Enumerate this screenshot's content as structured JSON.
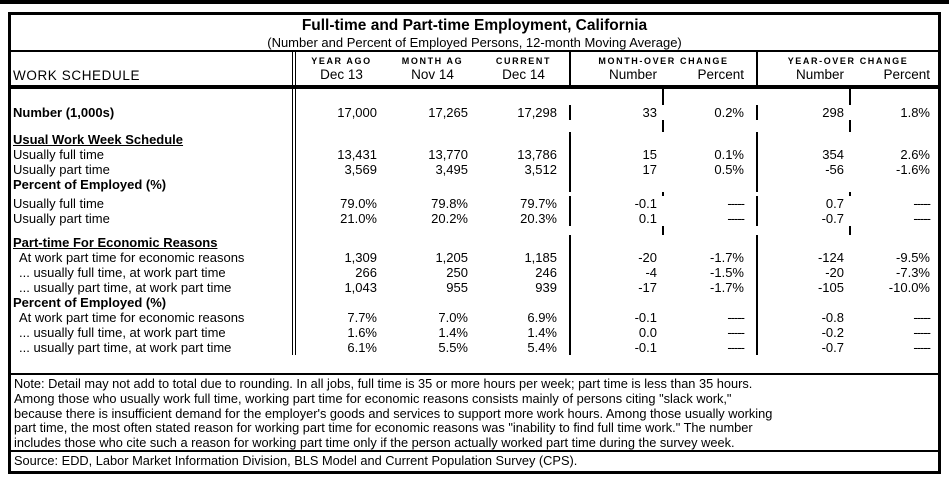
{
  "title": "Full-time and Part-time Employment, California",
  "subtitle": "(Number and Percent of Employed Persons, 12-month Moving Average)",
  "colors": {
    "border": "#000000",
    "background": "#ffffff",
    "text": "#000000"
  },
  "header": {
    "work_schedule": "WORK SCHEDULE",
    "period_cols": [
      {
        "top": "YEAR AGO",
        "sub": "Dec 13"
      },
      {
        "top": "MONTH AG",
        "sub": "Nov 14"
      },
      {
        "top": "CURRENT",
        "sub": "Dec 14"
      }
    ],
    "month_over": {
      "label": "MONTH-OVER CHANGE",
      "sub1": "Number",
      "sub2": "Percent"
    },
    "year_over": {
      "label": "YEAR-OVER CHANGE",
      "sub1": "Number",
      "sub2": "Percent"
    }
  },
  "table": {
    "rows": [
      {
        "type": "spacer",
        "h": 16
      },
      {
        "type": "data",
        "style": "bold",
        "label": "Number (1,000s)",
        "values": [
          "17,000",
          "17,265",
          "17,298",
          "33",
          "0.2%",
          "298",
          "1.8%"
        ]
      },
      {
        "type": "spacer",
        "h": 12
      },
      {
        "type": "data",
        "style": "underline",
        "label": "Usual Work Week Schedule",
        "values": [
          "",
          "",
          "",
          "",
          "",
          "",
          ""
        ]
      },
      {
        "type": "data",
        "style": "",
        "label": "Usually full time",
        "values": [
          "13,431",
          "13,770",
          "13,786",
          "15",
          "0.1%",
          "354",
          "2.6%"
        ]
      },
      {
        "type": "data",
        "style": "",
        "label": "Usually part time",
        "values": [
          "3,569",
          "3,495",
          "3,512",
          "17",
          "0.5%",
          "-56",
          "-1.6%"
        ]
      },
      {
        "type": "data",
        "style": "bold",
        "label": "Percent of Employed (%)",
        "values": [
          "",
          "",
          "",
          "",
          "",
          "",
          ""
        ]
      },
      {
        "type": "spacer",
        "h": 4
      },
      {
        "type": "data",
        "style": "",
        "label": "Usually full time",
        "values": [
          "79.0%",
          "79.8%",
          "79.7%",
          "-0.1",
          "-----",
          "0.7",
          "-----"
        ]
      },
      {
        "type": "data",
        "style": "",
        "label": "Usually part time",
        "values": [
          "21.0%",
          "20.2%",
          "20.3%",
          "0.1",
          "-----",
          "-0.7",
          "-----"
        ]
      },
      {
        "type": "spacer",
        "h": 9
      },
      {
        "type": "data",
        "style": "underline",
        "label": "Part-time For Economic Reasons",
        "values": [
          "",
          "",
          "",
          "",
          "",
          "",
          ""
        ]
      },
      {
        "type": "data",
        "style": "indent",
        "label": "At work part time for economic reasons",
        "values": [
          "1,309",
          "1,205",
          "1,185",
          "-20",
          "-1.7%",
          "-124",
          "-9.5%"
        ]
      },
      {
        "type": "data",
        "style": "indent",
        "label": "... usually full time, at work part time",
        "values": [
          "266",
          "250",
          "246",
          "-4",
          "-1.5%",
          "-20",
          "-7.3%"
        ]
      },
      {
        "type": "data",
        "style": "indent",
        "label": "... usually part time, at work part time",
        "values": [
          "1,043",
          "955",
          "939",
          "-17",
          "-1.7%",
          "-105",
          "-10.0%"
        ]
      },
      {
        "type": "data",
        "style": "bold",
        "label": "Percent of Employed (%)",
        "values": [
          "",
          "",
          "",
          "",
          "",
          "",
          ""
        ]
      },
      {
        "type": "data",
        "style": "indent",
        "label": "At work part time for economic reasons",
        "values": [
          "7.7%",
          "7.0%",
          "6.9%",
          "-0.1",
          "-----",
          "-0.8",
          "-----"
        ]
      },
      {
        "type": "data",
        "style": "indent",
        "label": "... usually full time, at work part time",
        "values": [
          "1.6%",
          "1.4%",
          "1.4%",
          "0.0",
          "-----",
          "-0.2",
          "-----"
        ]
      },
      {
        "type": "data",
        "style": "indent",
        "label": "... usually part time, at work part time",
        "values": [
          "6.1%",
          "5.5%",
          "5.4%",
          "-0.1",
          "-----",
          "-0.7",
          "-----"
        ]
      }
    ]
  },
  "note_lines": [
    "Note: Detail may not add to total due to rounding. In all jobs, full time is 35 or more hours per week; part time is less than 35 hours.",
    "Among those who usually work full time, working part time for economic reasons consists mainly of persons citing \"slack work,\"",
    "because there is insufficient demand for the employer's goods and services to support more work hours. Among those usually working",
    "part time, the most often stated reason for working part time for economic reasons was \"inability to find full time work.\" The number",
    "includes those who cite such a reason for working part time only if the person actually worked part time during the survey week."
  ],
  "source": "Source: EDD, Labor Market Information Division, BLS Model and Current Population Survey (CPS)."
}
